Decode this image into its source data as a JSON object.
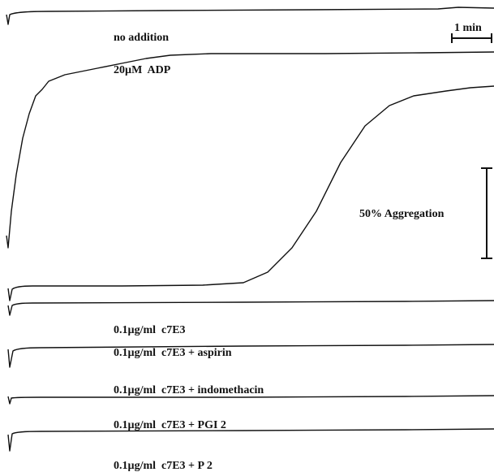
{
  "traces": [
    {
      "label": "no addition"
    },
    {
      "label": "20µM  ADP"
    },
    {
      "label": "0.1µg/ml  c7E3"
    },
    {
      "label": "0.1µg/ml  c7E3 + aspirin"
    },
    {
      "label": "0.1µg/ml  c7E3 + indomethacin"
    },
    {
      "label": "0.1µg/ml  c7E3 + PGI 2"
    },
    {
      "label": "0.1µg/ml  c7E3 + P 2"
    }
  ],
  "scale_bars": {
    "time": "1 min",
    "aggregation": "50% Aggregation"
  }
}
